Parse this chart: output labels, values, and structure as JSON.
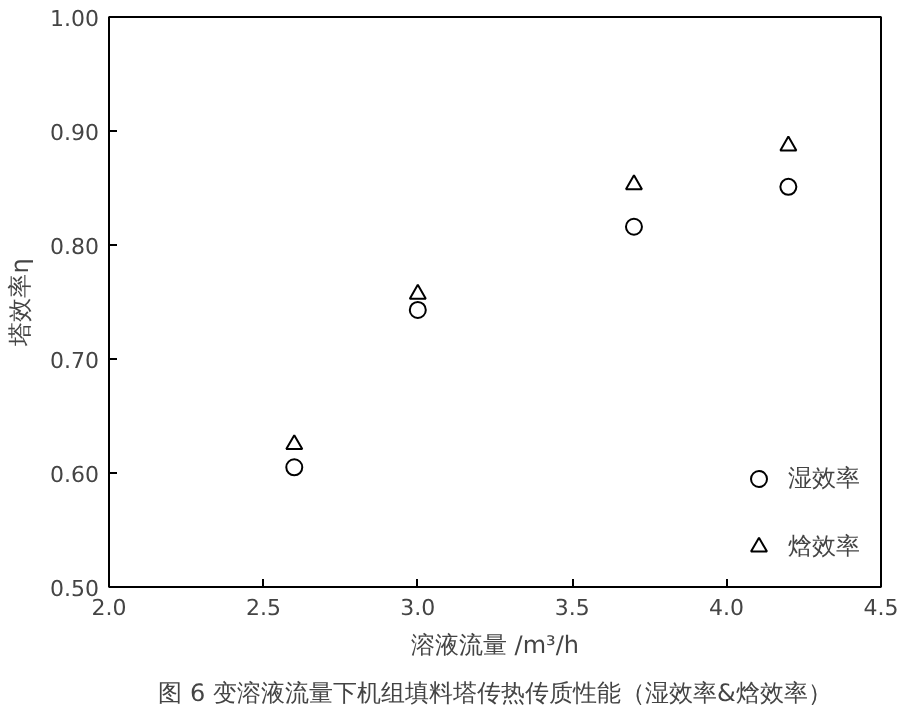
{
  "chart_data": {
    "type": "scatter",
    "xlabel": "溶液流量 /m³/h",
    "ylabel": "塔效率η",
    "x": [
      2.6,
      3.0,
      3.7,
      4.2
    ],
    "series": [
      {
        "name": "湿效率",
        "color": "#000000",
        "marker": "circle",
        "values": [
          0.605,
          0.743,
          0.816,
          0.851
        ]
      },
      {
        "name": "焓效率",
        "color": "#000000",
        "marker": "triangle",
        "values": [
          0.625,
          0.757,
          0.853,
          0.887
        ]
      }
    ],
    "xlim": [
      2.0,
      4.5
    ],
    "xticks": [
      {
        "value": 2.0,
        "label": "2.0"
      },
      {
        "value": 2.5,
        "label": "2.5"
      },
      {
        "value": 3.0,
        "label": "3.0"
      },
      {
        "value": 3.5,
        "label": "3.5"
      },
      {
        "value": 4.0,
        "label": "4.0"
      },
      {
        "value": 4.5,
        "label": "4.5"
      }
    ],
    "ylim": [
      0.5,
      1.0
    ],
    "yticks": [
      {
        "value": 0.5,
        "label": "0.50"
      },
      {
        "value": 0.6,
        "label": "0.60"
      },
      {
        "value": 0.7,
        "label": "0.70"
      },
      {
        "value": 0.8,
        "label": "0.80"
      },
      {
        "value": 0.9,
        "label": "0.90"
      },
      {
        "value": 1.0,
        "label": "1.00"
      }
    ],
    "grid": false,
    "legend": "bottom right",
    "annotations": [
      "图 6 变溶液流量下机组填料塔传热传质性能（湿效率&焓效率）"
    ]
  }
}
